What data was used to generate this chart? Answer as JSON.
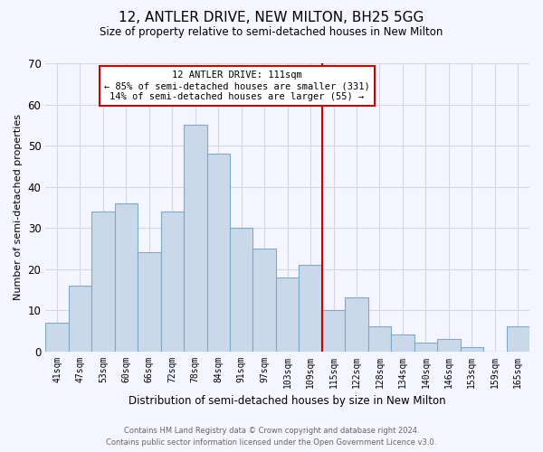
{
  "title": "12, ANTLER DRIVE, NEW MILTON, BH25 5GG",
  "subtitle": "Size of property relative to semi-detached houses in New Milton",
  "xlabel": "Distribution of semi-detached houses by size in New Milton",
  "ylabel": "Number of semi-detached properties",
  "categories": [
    "41sqm",
    "47sqm",
    "53sqm",
    "60sqm",
    "66sqm",
    "72sqm",
    "78sqm",
    "84sqm",
    "91sqm",
    "97sqm",
    "103sqm",
    "109sqm",
    "115sqm",
    "122sqm",
    "128sqm",
    "134sqm",
    "140sqm",
    "146sqm",
    "153sqm",
    "159sqm",
    "165sqm"
  ],
  "values": [
    7,
    16,
    34,
    36,
    24,
    34,
    55,
    48,
    30,
    25,
    18,
    21,
    10,
    13,
    6,
    4,
    2,
    3,
    1,
    0,
    6
  ],
  "bar_color": "#c9d9ea",
  "bar_edge_color": "#7baaca",
  "vline_x_index": 11.5,
  "vline_color": "#cc0000",
  "annotation_title": "12 ANTLER DRIVE: 111sqm",
  "annotation_line1": "← 85% of semi-detached houses are smaller (331)",
  "annotation_line2": "14% of semi-detached houses are larger (55) →",
  "annotation_box_color": "#ffffff",
  "annotation_box_edge": "#cc0000",
  "ylim": [
    0,
    70
  ],
  "yticks": [
    0,
    10,
    20,
    30,
    40,
    50,
    60,
    70
  ],
  "footer_line1": "Contains HM Land Registry data © Crown copyright and database right 2024.",
  "footer_line2": "Contains public sector information licensed under the Open Government Licence v3.0.",
  "background_color": "#f5f5ff",
  "grid_color": "#d0d8e8"
}
